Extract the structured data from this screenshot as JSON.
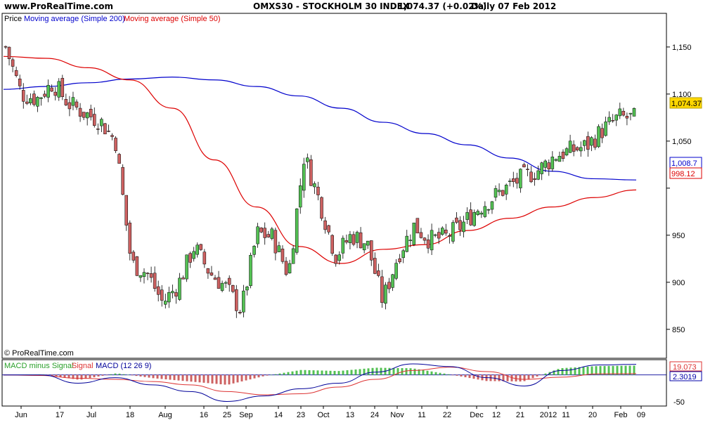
{
  "header": {
    "site": "www.ProRealTime.com",
    "instrument": "OMXS30 - STOCKHOLM 30 INDEX",
    "price_change": "1,074.37 (+0.02%)",
    "period_date": "Daily  07 Feb 2012"
  },
  "legend": {
    "price": "Price",
    "sma200": "Moving average (Simple 200)",
    "sma50": "Moving average (Simple 50)"
  },
  "copyright": "© ProRealTime.com",
  "macd_legend": {
    "hist": "MACD minus Signal",
    "signal": "Signal",
    "macd": "MACD (12 26 9)"
  },
  "colors": {
    "up": "#53c153",
    "down": "#cd6161",
    "sma200": "#0000cc",
    "sma50": "#dd0000",
    "last_price_bg": "#ffd700",
    "macd_line": "#000099",
    "signal_line": "#dd3333",
    "macd_fill_pos": "#a8e0a8",
    "macd_fill_neg": "#f0a8a8"
  },
  "price_tags": {
    "last": "1,074.37",
    "sma200": "1,008.7",
    "sma50": "998.12"
  },
  "macd_tags": {
    "macd": "19.073",
    "signal": "2.3019"
  },
  "chart_data": [
    {
      "type": "candlestick",
      "title": "OMXS30 - STOCKHOLM 30 INDEX",
      "ylim": [
        820,
        1185
      ],
      "y_ticks": [
        850,
        900,
        950,
        1000,
        1050,
        1100,
        1150
      ],
      "y_tick_labels": [
        "850",
        "900",
        "950",
        "",
        "1,050",
        "1,100",
        "1,150"
      ],
      "x_ticks": [
        "Jun",
        "17",
        "Jul",
        "18",
        "Aug",
        "16",
        "25",
        "Sep",
        "14",
        "23",
        "Oct",
        "13",
        "24",
        "Nov",
        "11",
        "22",
        "Dec",
        "12",
        "21",
        "2012",
        "11",
        "20",
        "Feb",
        "09"
      ],
      "grid": false,
      "series_sma200": [
        1105,
        1108,
        1112,
        1116,
        1118,
        1115,
        1108,
        1098,
        1085,
        1070,
        1058,
        1046,
        1032,
        1018,
        1010,
        1008.7
      ],
      "series_sma50": [
        1140,
        1138,
        1128,
        1115,
        1085,
        1030,
        980,
        938,
        920,
        935,
        940,
        955,
        968,
        980,
        990,
        998.12
      ],
      "close_trend": [
        1150,
        1100,
        1095,
        1112,
        1090,
        1080,
        1072,
        1050,
        920,
        910,
        878,
        898,
        938,
        910,
        895,
        870,
        952,
        948,
        908,
        1035,
        985,
        928,
        950,
        942,
        880,
        930,
        960,
        945,
        948,
        960,
        978,
        990,
        1002,
        1012,
        1020,
        1035,
        1040,
        1045,
        1062,
        1075,
        1074.37
      ]
    },
    {
      "type": "macd",
      "title": "MACD (12 26 9)",
      "ylim": [
        -55,
        25
      ],
      "y_ticks": [
        -50
      ],
      "macd_trend": [
        0,
        0,
        -15,
        -5,
        -18,
        -30,
        -48,
        -38,
        -25,
        -15,
        5,
        20,
        15,
        -5,
        -20,
        8,
        18,
        19.073
      ],
      "signal_trend": [
        0,
        -1,
        -6,
        -8,
        -12,
        -18,
        -30,
        -36,
        -34,
        -22,
        -8,
        8,
        14,
        6,
        -8,
        -4,
        2,
        2.3019
      ]
    }
  ]
}
